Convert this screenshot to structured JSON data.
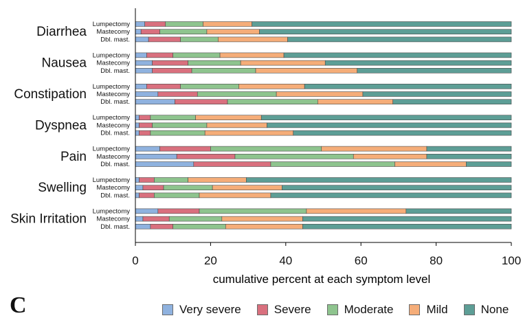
{
  "panel_label": "C",
  "colors": {
    "very_severe": "#8fb2df",
    "severe": "#d9707e",
    "moderate": "#8ec48e",
    "mild": "#f5ad79",
    "none": "#5d9e96",
    "bar_outline": "#4a4a4a"
  },
  "chart_data": {
    "type": "bar",
    "orientation": "horizontal",
    "stacking": "cumulative",
    "xlabel": "cumulative percent at each symptom level",
    "ylabel": "",
    "xlim": [
      0,
      100
    ],
    "xticks": [
      0,
      20,
      40,
      60,
      80,
      100
    ],
    "grid": false,
    "legend_position": "bottom",
    "legend": [
      {
        "key": "very_severe",
        "label": "Very severe"
      },
      {
        "key": "severe",
        "label": "Severe"
      },
      {
        "key": "moderate",
        "label": "Moderate"
      },
      {
        "key": "mild",
        "label": "Mild"
      },
      {
        "key": "none",
        "label": "None"
      }
    ],
    "groups": [
      {
        "symptom": "Diarrhea",
        "bars": [
          {
            "label": "Lumpectomy",
            "cumulative": [
              2.5,
              8,
              18,
              31,
              100
            ]
          },
          {
            "label": "Mastecomy",
            "cumulative": [
              1.5,
              6.5,
              19,
              33,
              100
            ]
          },
          {
            "label": "Dbl. mast.",
            "cumulative": [
              3.5,
              12,
              22,
              40.5,
              100
            ]
          }
        ]
      },
      {
        "symptom": "Nausea",
        "bars": [
          {
            "label": "Lumpectomy",
            "cumulative": [
              3,
              10,
              22.5,
              39.5,
              100
            ]
          },
          {
            "label": "Mastecomy",
            "cumulative": [
              4.5,
              14,
              28,
              50.5,
              100
            ]
          },
          {
            "label": "Dbl. mast.",
            "cumulative": [
              4.5,
              15,
              32,
              59,
              100
            ]
          }
        ]
      },
      {
        "symptom": "Constipation",
        "bars": [
          {
            "label": "Lumpectomy",
            "cumulative": [
              3,
              12,
              27.5,
              45,
              100
            ]
          },
          {
            "label": "Mastecomy",
            "cumulative": [
              6,
              16.5,
              37.5,
              60.5,
              100
            ]
          },
          {
            "label": "Dbl. mast.",
            "cumulative": [
              10.5,
              24.5,
              48.5,
              68.5,
              100
            ]
          }
        ]
      },
      {
        "symptom": "Dyspnea",
        "bars": [
          {
            "label": "Lumpectomy",
            "cumulative": [
              1,
              4,
              16,
              33.5,
              100
            ]
          },
          {
            "label": "Mastecomy",
            "cumulative": [
              1,
              4.5,
              19,
              35,
              100
            ]
          },
          {
            "label": "Dbl. mast.",
            "cumulative": [
              1,
              4,
              18.5,
              42,
              100
            ]
          }
        ]
      },
      {
        "symptom": "Pain",
        "bars": [
          {
            "label": "Lumpectomy",
            "cumulative": [
              6.5,
              20,
              49.5,
              77.5,
              100
            ]
          },
          {
            "label": "Mastecomy",
            "cumulative": [
              11,
              26.5,
              58,
              77.5,
              100
            ]
          },
          {
            "label": "Dbl. mast.",
            "cumulative": [
              15.5,
              36,
              69,
              88,
              100
            ]
          }
        ]
      },
      {
        "symptom": "Swelling",
        "bars": [
          {
            "label": "Lumpectomy",
            "cumulative": [
              1,
              5,
              14,
              29.5,
              100
            ]
          },
          {
            "label": "Mastecomy",
            "cumulative": [
              2,
              7.5,
              20.5,
              39,
              100
            ]
          },
          {
            "label": "Dbl. mast.",
            "cumulative": [
              1,
              5,
              17,
              36,
              100
            ]
          }
        ]
      },
      {
        "symptom": "Skin Irritation",
        "bars": [
          {
            "label": "Lumpectomy",
            "cumulative": [
              6,
              17,
              45.5,
              72,
              100
            ]
          },
          {
            "label": "Mastecomy",
            "cumulative": [
              2,
              9,
              23,
              44.5,
              100
            ]
          },
          {
            "label": "Dbl. mast.",
            "cumulative": [
              4,
              10,
              24,
              44.5,
              100
            ]
          }
        ]
      }
    ]
  }
}
